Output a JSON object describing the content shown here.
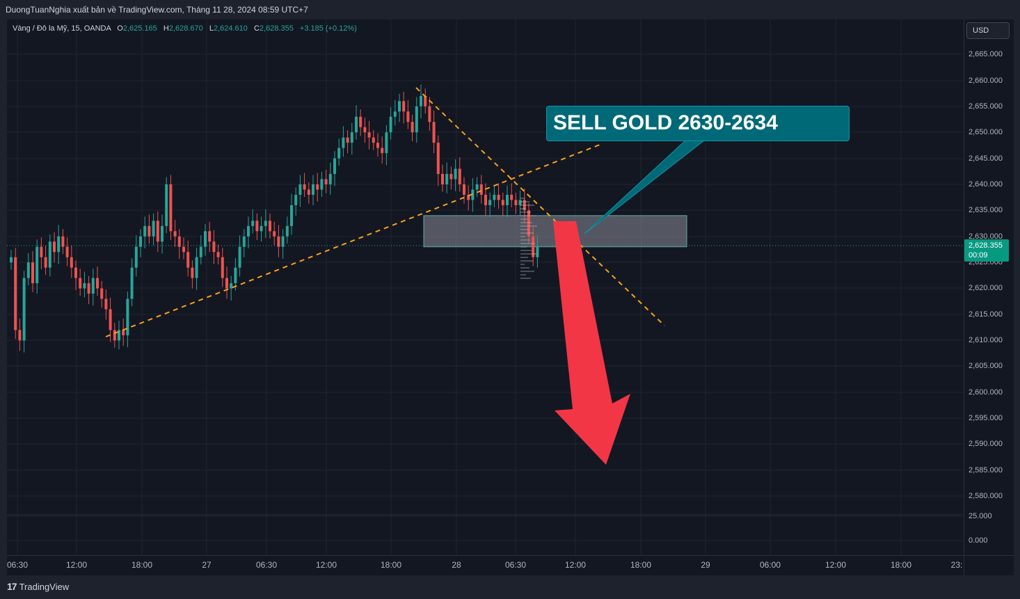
{
  "publisher_line": "DuongTuanNghia xuất bản về TradingView.com, Tháng 11 28, 2024 08:59 UTC+7",
  "legend": {
    "symbol": "Vàng / Đô la Mỹ, 15, OANDA",
    "open_label": "O",
    "open": "2,625.165",
    "high_label": "H",
    "high": "2,628.670",
    "low_label": "L",
    "low": "2,624.610",
    "close_label": "C",
    "close": "2,628.355",
    "change": "+3.185 (+0.12%)"
  },
  "currency_button": "USD",
  "price_scale": [
    "2,665.000",
    "2,660.000",
    "2,655.000",
    "2,650.000",
    "2,645.000",
    "2,640.000",
    "2,635.000",
    "2,630.000",
    "2,625.000",
    "2,620.000",
    "2,615.000",
    "2,610.000",
    "2,605.000",
    "2,600.000",
    "2,595.000",
    "2,590.000",
    "2,585.000",
    "2,580.000",
    "25.000",
    "0.000"
  ],
  "time_scale": [
    "06:30",
    "12:00",
    "18:00",
    "27",
    "06:30",
    "12:00",
    "18:00",
    "28",
    "06:30",
    "12:00",
    "18:00",
    "29",
    "06:00",
    "12:00",
    "18:00",
    "23:"
  ],
  "last_price": {
    "price": "2,628.355",
    "countdown": "00:09"
  },
  "annotation": {
    "text": "SELL GOLD 2630-2634"
  },
  "brand": {
    "logo": "17",
    "name": "TradingView"
  },
  "colors": {
    "bull": "#26a69a",
    "bear": "#ef5350",
    "background": "#131722",
    "trendline": "#f7a21b",
    "zone": "#6a6d78",
    "callout": "#006977",
    "arrow": "#f23645"
  },
  "chart_data": {
    "type": "candlestick",
    "symbol": "XAU/USD",
    "interval": "15",
    "ylim": [
      2578,
      2668
    ],
    "sell_zone": [
      2628,
      2634
    ],
    "closes": [
      2626,
      2612,
      2610,
      2622,
      2625,
      2621,
      2628,
      2626,
      2624,
      2629,
      2627,
      2630,
      2628,
      2626,
      2624,
      2622,
      2620,
      2621,
      2619,
      2622,
      2620,
      2618,
      2616,
      2612,
      2610,
      2612,
      2611,
      2618,
      2624,
      2628,
      2630,
      2632,
      2630,
      2633,
      2629,
      2632,
      2640,
      2631,
      2630,
      2628,
      2627,
      2624,
      2622,
      2626,
      2628,
      2631,
      2629,
      2627,
      2626,
      2622,
      2620,
      2621,
      2624,
      2628,
      2630,
      2632,
      2633,
      2631,
      2632,
      2633,
      2631,
      2630,
      2628,
      2630,
      2632,
      2636,
      2638,
      2640,
      2639,
      2638,
      2640,
      2639,
      2641,
      2640,
      2642,
      2645,
      2647,
      2649,
      2648,
      2650,
      2653,
      2651,
      2650,
      2649,
      2648,
      2647,
      2646,
      2650,
      2653,
      2654,
      2656,
      2654,
      2652,
      2650,
      2655,
      2657,
      2655,
      2652,
      2648,
      2642,
      2640,
      2642,
      2641,
      2643,
      2640,
      2638,
      2637,
      2639,
      2640,
      2638,
      2636,
      2637,
      2638,
      2637,
      2636,
      2638,
      2637,
      2636,
      2637,
      2635,
      2630,
      2626,
      2628
    ]
  }
}
